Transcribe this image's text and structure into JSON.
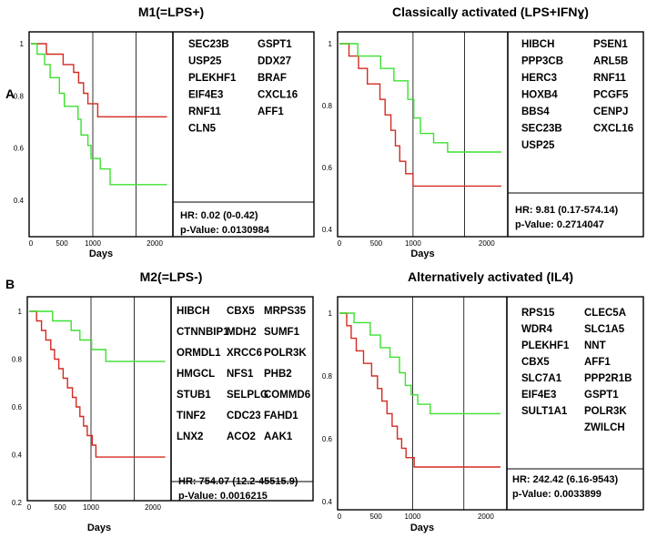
{
  "figure": {
    "panel_labels": [
      "A",
      "B"
    ],
    "colors": {
      "high_risk": "#d42a20",
      "low_risk": "#3ce030",
      "frame": "#000000",
      "vline": "#000000"
    }
  },
  "chart_data": [
    {
      "type": "line",
      "title": "M1(=LPS+)",
      "xlabel": "Days",
      "ylabel": "",
      "xlim": [
        0,
        2250
      ],
      "ylim": [
        0.36,
        1.03
      ],
      "x_ticks": [
        "0",
        "500",
        "1000",
        "2000"
      ],
      "x_tick_values": [
        0,
        500,
        1000,
        2000
      ],
      "y_ticks": [
        "1",
        "0.8",
        "0.6",
        "0.4"
      ],
      "y_tick_values": [
        1,
        0.8,
        0.6,
        0.4
      ],
      "vlines": [
        1000,
        1700
      ],
      "genes_left": [
        "SEC23B",
        "USP25",
        "PLEKHF1",
        "EIF4E3",
        "RNF11",
        "CLN5"
      ],
      "genes_right": [
        "GSPT1",
        "DDX27",
        "BRAF",
        "CXCL16",
        "AFF1"
      ],
      "hr": "HR: 0.02 (0-0.42)",
      "pvalue": "p-Value: 0.0130984",
      "series": [
        {
          "name": "red",
          "color": "#d42a20",
          "points": [
            [
              0,
              1
            ],
            [
              250,
              1
            ],
            [
              250,
              0.96
            ],
            [
              520,
              0.96
            ],
            [
              520,
              0.92
            ],
            [
              690,
              0.92
            ],
            [
              690,
              0.89
            ],
            [
              770,
              0.89
            ],
            [
              770,
              0.85
            ],
            [
              850,
              0.85
            ],
            [
              850,
              0.81
            ],
            [
              920,
              0.81
            ],
            [
              920,
              0.77
            ],
            [
              1080,
              0.77
            ],
            [
              1080,
              0.72
            ],
            [
              2200,
              0.72
            ]
          ]
        },
        {
          "name": "green",
          "color": "#3ce030",
          "points": [
            [
              0,
              1
            ],
            [
              100,
              1
            ],
            [
              100,
              0.96
            ],
            [
              220,
              0.96
            ],
            [
              220,
              0.92
            ],
            [
              310,
              0.92
            ],
            [
              310,
              0.87
            ],
            [
              460,
              0.87
            ],
            [
              460,
              0.81
            ],
            [
              540,
              0.81
            ],
            [
              540,
              0.76
            ],
            [
              760,
              0.76
            ],
            [
              760,
              0.71
            ],
            [
              810,
              0.71
            ],
            [
              810,
              0.65
            ],
            [
              920,
              0.65
            ],
            [
              920,
              0.61
            ],
            [
              970,
              0.61
            ],
            [
              970,
              0.56
            ],
            [
              1120,
              0.56
            ],
            [
              1120,
              0.52
            ],
            [
              1280,
              0.52
            ],
            [
              1280,
              0.46
            ],
            [
              2200,
              0.46
            ]
          ]
        }
      ]
    },
    {
      "type": "line",
      "title": "Classically activated (LPS+IFNɣ)",
      "xlabel": "Days",
      "ylabel": "",
      "xlim": [
        0,
        2250
      ],
      "ylim": [
        0.36,
        1.03
      ],
      "x_ticks": [
        "0",
        "500",
        "1000",
        "2000"
      ],
      "x_tick_values": [
        0,
        500,
        1000,
        2000
      ],
      "y_ticks": [
        "1",
        "0.8",
        "0.6",
        "0.4"
      ],
      "y_tick_values": [
        1,
        0.8,
        0.6,
        0.4
      ],
      "vlines": [
        1000,
        1700
      ],
      "genes_left": [
        "HIBCH",
        "PPP3CB",
        "HERC3",
        "HOXB4",
        "BBS4",
        "SEC23B",
        "USP25"
      ],
      "genes_right": [
        "PSEN1",
        "ARL5B",
        "RNF11",
        "PCGF5",
        "CENPJ",
        "CXCL16"
      ],
      "hr": "HR: 9.81 (0.17-574.14)",
      "pvalue": "p-Value: 0.2714047",
      "series": [
        {
          "name": "red",
          "color": "#d42a20",
          "points": [
            [
              0,
              1
            ],
            [
              130,
              1
            ],
            [
              130,
              0.96
            ],
            [
              260,
              0.96
            ],
            [
              260,
              0.92
            ],
            [
              380,
              0.92
            ],
            [
              380,
              0.87
            ],
            [
              550,
              0.87
            ],
            [
              550,
              0.82
            ],
            [
              620,
              0.82
            ],
            [
              620,
              0.77
            ],
            [
              700,
              0.77
            ],
            [
              700,
              0.72
            ],
            [
              760,
              0.72
            ],
            [
              760,
              0.67
            ],
            [
              820,
              0.67
            ],
            [
              820,
              0.62
            ],
            [
              900,
              0.62
            ],
            [
              900,
              0.58
            ],
            [
              1000,
              0.58
            ],
            [
              1000,
              0.54
            ],
            [
              2200,
              0.54
            ]
          ]
        },
        {
          "name": "green",
          "color": "#3ce030",
          "points": [
            [
              0,
              1
            ],
            [
              250,
              1
            ],
            [
              250,
              0.96
            ],
            [
              560,
              0.96
            ],
            [
              560,
              0.92
            ],
            [
              740,
              0.92
            ],
            [
              740,
              0.88
            ],
            [
              930,
              0.88
            ],
            [
              930,
              0.82
            ],
            [
              1010,
              0.82
            ],
            [
              1010,
              0.76
            ],
            [
              1100,
              0.76
            ],
            [
              1100,
              0.71
            ],
            [
              1280,
              0.71
            ],
            [
              1280,
              0.68
            ],
            [
              1470,
              0.68
            ],
            [
              1470,
              0.65
            ],
            [
              2200,
              0.65
            ]
          ]
        }
      ]
    },
    {
      "type": "line",
      "title": "M2(=LPS-)",
      "xlabel": "Days",
      "ylabel": "",
      "xlim": [
        0,
        2250
      ],
      "ylim": [
        0.2,
        1.03
      ],
      "x_ticks": [
        "0",
        "500",
        "1000",
        "2000"
      ],
      "x_tick_values": [
        0,
        500,
        1000,
        2000
      ],
      "y_ticks": [
        "1",
        "0.8",
        "0.6",
        "0.4",
        "0.2"
      ],
      "y_tick_values": [
        1,
        0.8,
        0.6,
        0.4,
        0.2
      ],
      "vlines": [
        1000,
        1700
      ],
      "genes_col1": [
        "HIBCH",
        "CTNNBIP1",
        "ORMDL1",
        "HMGCL",
        "STUB1",
        "TINF2",
        "LNX2"
      ],
      "genes_col2": [
        "CBX5",
        "MDH2",
        "XRCC6",
        "NFS1",
        "SELPLG",
        "CDC23",
        "ACO2"
      ],
      "genes_col3": [
        "MRPS35",
        "SUMF1",
        "POLR3K",
        "PHB2",
        "COMMD6",
        "FAHD1",
        "AAK1"
      ],
      "hr": "HR: 754.07 (12.2-45515.9)",
      "pvalue": "p-Value: 0.0016215",
      "series": [
        {
          "name": "red",
          "color": "#d42a20",
          "points": [
            [
              0,
              1
            ],
            [
              120,
              1
            ],
            [
              120,
              0.96
            ],
            [
              200,
              0.96
            ],
            [
              200,
              0.92
            ],
            [
              270,
              0.92
            ],
            [
              270,
              0.88
            ],
            [
              350,
              0.88
            ],
            [
              350,
              0.84
            ],
            [
              410,
              0.84
            ],
            [
              410,
              0.8
            ],
            [
              480,
              0.8
            ],
            [
              480,
              0.76
            ],
            [
              550,
              0.76
            ],
            [
              550,
              0.72
            ],
            [
              620,
              0.72
            ],
            [
              620,
              0.68
            ],
            [
              700,
              0.68
            ],
            [
              700,
              0.64
            ],
            [
              760,
              0.64
            ],
            [
              760,
              0.6
            ],
            [
              820,
              0.6
            ],
            [
              820,
              0.56
            ],
            [
              880,
              0.56
            ],
            [
              880,
              0.52
            ],
            [
              940,
              0.52
            ],
            [
              940,
              0.48
            ],
            [
              1020,
              0.48
            ],
            [
              1020,
              0.44
            ],
            [
              1080,
              0.44
            ],
            [
              1080,
              0.39
            ],
            [
              2200,
              0.39
            ]
          ]
        },
        {
          "name": "green",
          "color": "#3ce030",
          "points": [
            [
              0,
              1
            ],
            [
              380,
              1
            ],
            [
              380,
              0.96
            ],
            [
              680,
              0.96
            ],
            [
              680,
              0.92
            ],
            [
              820,
              0.92
            ],
            [
              820,
              0.88
            ],
            [
              1010,
              0.88
            ],
            [
              1010,
              0.84
            ],
            [
              1240,
              0.84
            ],
            [
              1240,
              0.79
            ],
            [
              2200,
              0.79
            ]
          ]
        }
      ]
    },
    {
      "type": "line",
      "title": "Alternatively activated (IL4)",
      "xlabel": "Days",
      "ylabel": "",
      "xlim": [
        0,
        2250
      ],
      "ylim": [
        0.36,
        1.03
      ],
      "x_ticks": [
        "0",
        "500",
        "1000",
        "2000"
      ],
      "x_tick_values": [
        0,
        500,
        1000,
        2000
      ],
      "y_ticks": [
        "1",
        "0.8",
        "0.6",
        "0.4"
      ],
      "y_tick_values": [
        1,
        0.8,
        0.6,
        0.4
      ],
      "vlines": [
        1000,
        1700
      ],
      "genes_left": [
        "RPS15",
        "WDR4",
        "PLEKHF1",
        "CBX5",
        "SLC7A1",
        "EIF4E3",
        "SULT1A1"
      ],
      "genes_right": [
        "CLEC5A",
        "SLC1A5",
        "NNT",
        "AFF1",
        "PPP2R1B",
        "GSPT1",
        "POLR3K",
        "ZWILCH"
      ],
      "hr": "HR: 242.42 (6.16-9543)",
      "pvalue": "p-Value: 0.0033899",
      "series": [
        {
          "name": "red",
          "color": "#d42a20",
          "points": [
            [
              0,
              1
            ],
            [
              100,
              1
            ],
            [
              100,
              0.96
            ],
            [
              160,
              0.96
            ],
            [
              160,
              0.92
            ],
            [
              230,
              0.92
            ],
            [
              230,
              0.88
            ],
            [
              330,
              0.88
            ],
            [
              330,
              0.84
            ],
            [
              440,
              0.84
            ],
            [
              440,
              0.8
            ],
            [
              520,
              0.8
            ],
            [
              520,
              0.76
            ],
            [
              580,
              0.76
            ],
            [
              580,
              0.72
            ],
            [
              650,
              0.72
            ],
            [
              650,
              0.68
            ],
            [
              720,
              0.68
            ],
            [
              720,
              0.64
            ],
            [
              790,
              0.64
            ],
            [
              790,
              0.6
            ],
            [
              850,
              0.6
            ],
            [
              850,
              0.57
            ],
            [
              910,
              0.57
            ],
            [
              910,
              0.54
            ],
            [
              1020,
              0.54
            ],
            [
              1020,
              0.51
            ],
            [
              2200,
              0.51
            ]
          ]
        },
        {
          "name": "green",
          "color": "#3ce030",
          "points": [
            [
              0,
              1
            ],
            [
              200,
              1
            ],
            [
              200,
              0.97
            ],
            [
              420,
              0.97
            ],
            [
              420,
              0.93
            ],
            [
              560,
              0.93
            ],
            [
              560,
              0.89
            ],
            [
              690,
              0.89
            ],
            [
              690,
              0.86
            ],
            [
              820,
              0.86
            ],
            [
              820,
              0.81
            ],
            [
              900,
              0.81
            ],
            [
              900,
              0.77
            ],
            [
              980,
              0.77
            ],
            [
              980,
              0.74
            ],
            [
              1070,
              0.74
            ],
            [
              1070,
              0.71
            ],
            [
              1240,
              0.71
            ],
            [
              1240,
              0.68
            ],
            [
              2200,
              0.68
            ]
          ]
        }
      ]
    }
  ]
}
